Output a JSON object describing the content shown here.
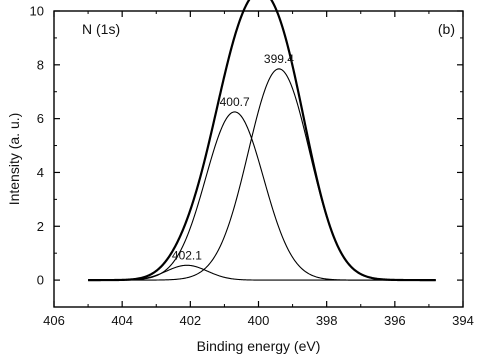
{
  "chart_data": {
    "type": "line",
    "title": "",
    "annotations": {
      "element": "N (1s)",
      "panel": "(b)"
    },
    "xlabel": "Binding energy (eV)",
    "ylabel": "Intensity (a. u.)",
    "xlim": [
      406,
      394
    ],
    "x_reversed": true,
    "ylim": [
      -1,
      10
    ],
    "xticks": [
      406,
      404,
      402,
      400,
      398,
      396,
      394
    ],
    "yticks": [
      0,
      2,
      4,
      6,
      8,
      10
    ],
    "grid": false,
    "legend": "none",
    "components": [
      {
        "peak_label": "402.1",
        "center": 402.1,
        "height": 0.55,
        "sigma": 0.6
      },
      {
        "peak_label": "400.7",
        "center": 400.7,
        "height": 6.25,
        "sigma": 0.85
      },
      {
        "peak_label": "399.4",
        "center": 399.4,
        "height": 7.85,
        "sigma": 0.9
      }
    ],
    "envelope": "sum of components",
    "x_range": [
      405,
      394.8
    ],
    "colors": {
      "line": "#000000",
      "axes": "#000000"
    }
  }
}
